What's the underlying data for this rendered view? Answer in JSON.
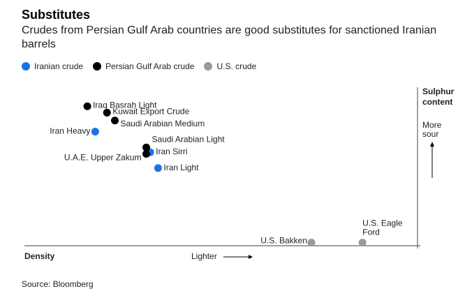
{
  "title": "Substitutes",
  "subtitle": "Crudes from Persian Gulf Arab countries are good substitutes for sanctioned Iranian barrels",
  "source": "Source: Bloomberg",
  "colors": {
    "iranian": "#1a73e8",
    "gulf": "#000000",
    "us": "#999999",
    "axis": "#666666"
  },
  "chart_data": {
    "type": "scatter",
    "xlabel": "Density",
    "x_direction_label": "Lighter",
    "ylabel": "Sulphur content",
    "y_direction_label": "More sour",
    "legend_position": "top-left",
    "grid": false,
    "series": [
      {
        "name": "Iranian crude",
        "color_key": "iranian",
        "points": [
          {
            "label": "Iran Heavy",
            "x": 0.18,
            "y": 0.72
          },
          {
            "label": "Iran Sirri",
            "x": 0.32,
            "y": 0.59
          },
          {
            "label": "Iran Light",
            "x": 0.34,
            "y": 0.49
          }
        ]
      },
      {
        "name": "Persian Gulf Arab crude",
        "color_key": "gulf",
        "points": [
          {
            "label": "Iraq Basrah Light",
            "x": 0.16,
            "y": 0.88
          },
          {
            "label": "Kuwait Export Crude",
            "x": 0.21,
            "y": 0.84
          },
          {
            "label": "Saudi Arabian Medium",
            "x": 0.23,
            "y": 0.79
          },
          {
            "label": "Saudi Arabian Light",
            "x": 0.31,
            "y": 0.62
          },
          {
            "label": "U.A.E. Upper Zakum",
            "x": 0.31,
            "y": 0.58
          }
        ]
      },
      {
        "name": "U.S. crude",
        "color_key": "us",
        "points": [
          {
            "label": "U.S. Bakken",
            "x": 0.73,
            "y": 0.02
          },
          {
            "label": "U.S. Eagle Ford",
            "x": 0.86,
            "y": 0.02
          }
        ]
      }
    ]
  }
}
